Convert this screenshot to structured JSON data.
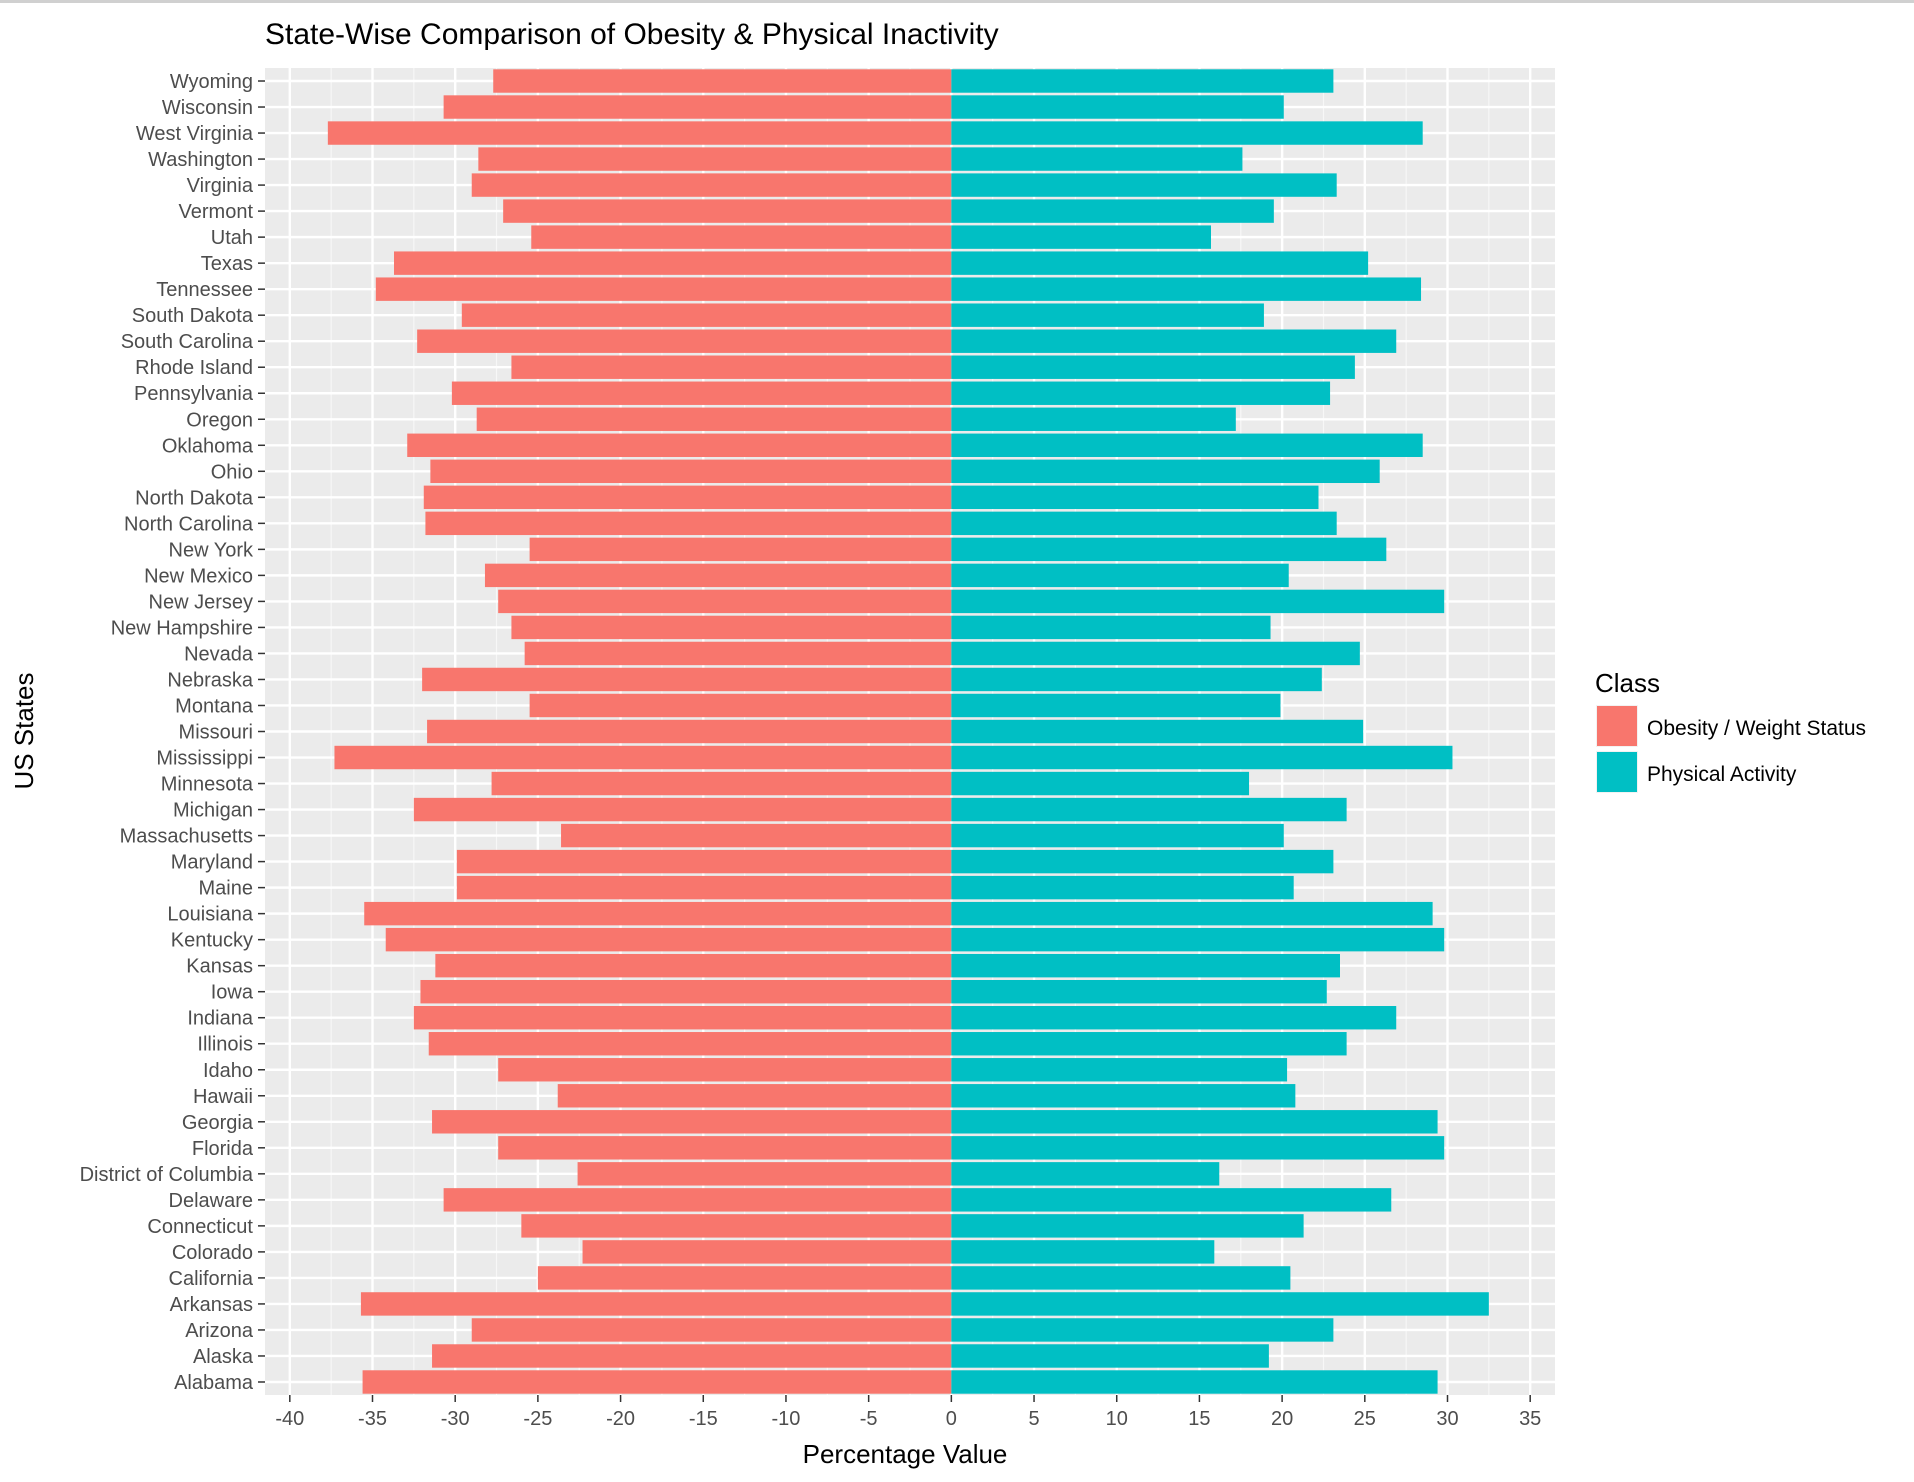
{
  "chart_data": {
    "type": "bar",
    "orientation": "horizontal",
    "title": "State-Wise Comparison of Obesity & Physical Inactivity",
    "xlabel": "Percentage Value",
    "ylabel": "US States",
    "xlim": [
      -41.5,
      36.5
    ],
    "xticks": [
      -40,
      -35,
      -30,
      -25,
      -20,
      -15,
      -10,
      -5,
      0,
      5,
      10,
      15,
      20,
      25,
      30,
      35
    ],
    "grid": true,
    "legend": {
      "title": "Class",
      "position": "right"
    },
    "categories": [
      "Alabama",
      "Alaska",
      "Arizona",
      "Arkansas",
      "California",
      "Colorado",
      "Connecticut",
      "Delaware",
      "District of Columbia",
      "Florida",
      "Georgia",
      "Hawaii",
      "Idaho",
      "Illinois",
      "Indiana",
      "Iowa",
      "Kansas",
      "Kentucky",
      "Louisiana",
      "Maine",
      "Maryland",
      "Massachusetts",
      "Michigan",
      "Minnesota",
      "Mississippi",
      "Missouri",
      "Montana",
      "Nebraska",
      "Nevada",
      "New Hampshire",
      "New Jersey",
      "New Mexico",
      "New York",
      "North Carolina",
      "North Dakota",
      "Ohio",
      "Oklahoma",
      "Oregon",
      "Pennsylvania",
      "Rhode Island",
      "South Carolina",
      "South Dakota",
      "Tennessee",
      "Texas",
      "Utah",
      "Vermont",
      "Virginia",
      "Washington",
      "West Virginia",
      "Wisconsin",
      "Wyoming"
    ],
    "series": [
      {
        "name": "Obesity / Weight Status",
        "color": "#F8766D",
        "values": [
          -35.6,
          -31.4,
          -29.0,
          -35.7,
          -25.0,
          -22.3,
          -26.0,
          -30.7,
          -22.6,
          -27.4,
          -31.4,
          -23.8,
          -27.4,
          -31.6,
          -32.5,
          -32.1,
          -31.2,
          -34.2,
          -35.5,
          -29.9,
          -29.9,
          -23.6,
          -32.5,
          -27.8,
          -37.3,
          -31.7,
          -25.5,
          -32.0,
          -25.8,
          -26.6,
          -27.4,
          -28.2,
          -25.5,
          -31.8,
          -31.9,
          -31.5,
          -32.9,
          -28.7,
          -30.2,
          -26.6,
          -32.3,
          -29.6,
          -34.8,
          -33.7,
          -25.4,
          -27.1,
          -29.0,
          -28.6,
          -37.7,
          -30.7,
          -27.7
        ]
      },
      {
        "name": "Physical Activity",
        "color": "#00BFC4",
        "values": [
          29.4,
          19.2,
          23.1,
          32.5,
          20.5,
          15.9,
          21.3,
          26.6,
          16.2,
          29.8,
          29.4,
          20.8,
          20.3,
          23.9,
          26.9,
          22.7,
          23.5,
          29.8,
          29.1,
          20.7,
          23.1,
          20.1,
          23.9,
          18.0,
          30.3,
          24.9,
          19.9,
          22.4,
          24.7,
          19.3,
          29.8,
          20.4,
          26.3,
          23.3,
          22.2,
          25.9,
          28.5,
          17.2,
          22.9,
          24.4,
          26.9,
          18.9,
          28.4,
          25.2,
          15.7,
          19.5,
          23.3,
          17.6,
          28.5,
          20.1,
          23.1
        ]
      }
    ]
  }
}
